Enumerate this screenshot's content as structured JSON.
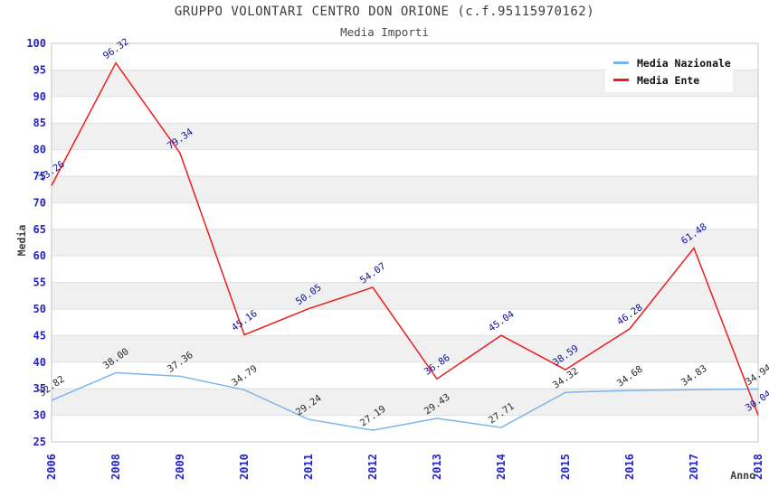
{
  "chart_data": {
    "type": "line",
    "title": "GRUPPO VOLONTARI CENTRO DON ORIONE (c.f.95115970162)",
    "subtitle": "Media Importi",
    "xlabel": "Anno",
    "ylabel": "Media",
    "ylim": [
      25,
      100
    ],
    "ytick_step": 5,
    "grid": true,
    "legend_position": "top-right",
    "categories": [
      "2006",
      "2008",
      "2009",
      "2010",
      "2011",
      "2012",
      "2013",
      "2014",
      "2015",
      "2016",
      "2017",
      "2018"
    ],
    "series": [
      {
        "name": "Media Nazionale",
        "color": "#7cb5ec",
        "label_color": "#2a2a2a",
        "values": [
          32.82,
          38.0,
          37.36,
          34.79,
          29.24,
          27.19,
          29.43,
          27.71,
          34.32,
          34.68,
          34.83,
          34.94
        ]
      },
      {
        "name": "Media Ente",
        "color": "#ee1c1c",
        "label_color": "#0f0f99",
        "values": [
          73.26,
          96.32,
          79.34,
          45.16,
          50.05,
          54.07,
          36.86,
          45.04,
          38.59,
          46.28,
          61.48,
          30.04
        ]
      }
    ],
    "styles": {
      "tick_color": "#2424cc",
      "title_color": "#3c3c3c",
      "band_colors": [
        "#ffffff",
        "#f0f0f0"
      ],
      "grid_color": "#e0e0e0",
      "border_color": "#c6c6c6"
    }
  }
}
